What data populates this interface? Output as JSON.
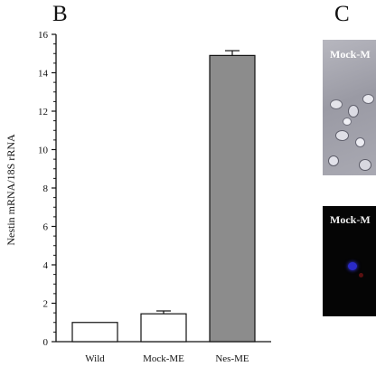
{
  "panels": {
    "left_letter": "B",
    "right_letter": "C"
  },
  "micrographs": {
    "top_label": "Mock-M",
    "bottom_label": "Mock-M"
  },
  "chart_data": {
    "type": "bar",
    "categories": [
      "Wild",
      "Mock-ME",
      "Nes-ME"
    ],
    "values": [
      1.0,
      1.45,
      14.9
    ],
    "errors": [
      0,
      0.15,
      0.25
    ],
    "bar_colors": [
      "#ffffff",
      "#ffffff",
      "#8c8c8c"
    ],
    "ylabel": "Nestin mRNA/18S rRNA",
    "xlabel": "",
    "title": "",
    "ylim": [
      0,
      16
    ],
    "yticks": [
      0,
      2,
      4,
      6,
      8,
      10,
      12,
      14,
      16
    ],
    "grid": false
  }
}
